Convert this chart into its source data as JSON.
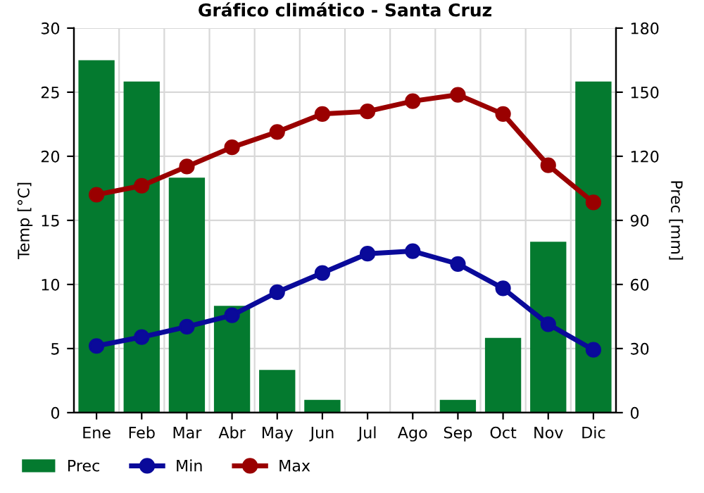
{
  "chart_data": {
    "type": "line",
    "title": "Gráfico climático - Santa Cruz",
    "ylabel": "Temp [°C]",
    "y2label": "Prec [mm]",
    "categories": [
      "Ene",
      "Feb",
      "Mar",
      "Abr",
      "May",
      "Jun",
      "Jul",
      "Ago",
      "Sep",
      "Oct",
      "Nov",
      "Dic"
    ],
    "series": [
      {
        "name": "Prec",
        "type": "bar",
        "axis": "y2",
        "color": "#047a2f",
        "values": [
          165,
          155,
          110,
          50,
          20,
          6,
          0,
          0,
          6,
          35,
          80,
          155
        ]
      },
      {
        "name": "Min",
        "color": "#0a0a9a",
        "values": [
          5.2,
          5.9,
          6.7,
          7.6,
          9.4,
          10.9,
          12.4,
          12.6,
          11.6,
          9.7,
          6.9,
          4.9
        ]
      },
      {
        "name": "Max",
        "color": "#9a0000",
        "values": [
          17.0,
          17.7,
          19.2,
          20.7,
          21.9,
          23.3,
          23.5,
          24.3,
          24.8,
          23.3,
          19.3,
          16.4
        ]
      }
    ],
    "ylim": [
      0,
      30
    ],
    "yticks": [
      0,
      5,
      10,
      15,
      20,
      25,
      30
    ],
    "y2lim": [
      0,
      180
    ],
    "y2ticks": [
      0,
      30,
      60,
      90,
      120,
      150,
      180
    ],
    "grid": true,
    "legend": "bottom left",
    "marker": "circle",
    "line_style": "solid"
  }
}
